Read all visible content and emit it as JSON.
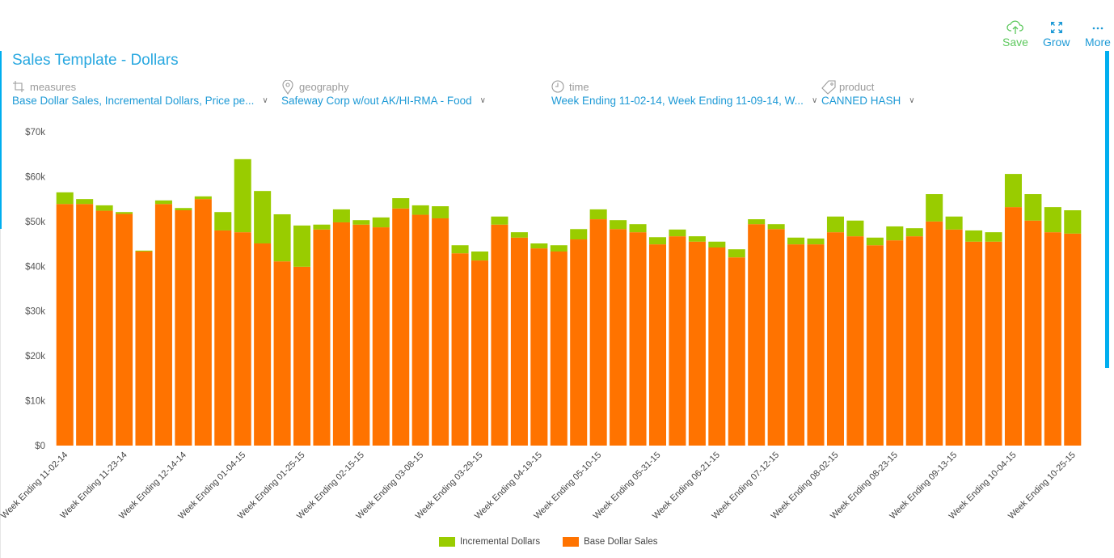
{
  "header": {
    "title": "Sales Template - Dollars",
    "actions": [
      {
        "label": "Save",
        "icon": "cloud-upload-icon",
        "color": "#5cc85c"
      },
      {
        "label": "Grow",
        "icon": "expand-icon",
        "color": "#1e9ad6"
      },
      {
        "label": "More",
        "icon": "more-dots-icon",
        "color": "#1e9ad6"
      }
    ]
  },
  "filters": {
    "measures": {
      "label": "measures",
      "value": "Base Dollar Sales, Incremental Dollars, Price pe...",
      "icon": "crop-icon"
    },
    "geography": {
      "label": "geography",
      "value": "Safeway Corp w/out AK/HI-RMA - Food",
      "icon": "map-pin-icon"
    },
    "time": {
      "label": "time",
      "value": "Week Ending 11-02-14, Week Ending 11-09-14, W...",
      "icon": "clock-icon"
    },
    "product": {
      "label": "product",
      "value": "CANNED HASH",
      "icon": "tag-icon"
    }
  },
  "colors": {
    "accent": "#00aeef",
    "incremental": "#99cc00",
    "base": "#ff7300"
  },
  "chart_data": {
    "type": "bar",
    "stacked": true,
    "title": "",
    "xlabel": "",
    "ylabel": "",
    "ylim": [
      0,
      70000
    ],
    "yticks": [
      0,
      10000,
      20000,
      30000,
      40000,
      50000,
      60000,
      70000
    ],
    "ytick_labels": [
      "$0",
      "$10k",
      "$20k",
      "$30k",
      "$40k",
      "$50k",
      "$60k",
      "$70k"
    ],
    "grid": false,
    "legend_position": "bottom-center",
    "x_labels_shown": [
      "Week Ending 11-02-14",
      "Week Ending 11-23-14",
      "Week Ending 12-14-14",
      "Week Ending 01-04-15",
      "Week Ending 01-25-15",
      "Week Ending 02-15-15",
      "Week Ending 03-08-15",
      "Week Ending 03-29-15",
      "Week Ending 04-19-15",
      "Week Ending 05-10-15",
      "Week Ending 05-31-15",
      "Week Ending 06-21-15",
      "Week Ending 07-12-15",
      "Week Ending 08-02-15",
      "Week Ending 08-23-15",
      "Week Ending 09-13-15",
      "Week Ending 10-04-15",
      "Week Ending 10-25-15"
    ],
    "x_label_every": 3,
    "series": [
      {
        "name": "Base Dollar Sales",
        "color": "#ff7300",
        "values": [
          53900,
          53900,
          52400,
          51700,
          43300,
          53900,
          52500,
          55000,
          48000,
          47600,
          45100,
          41100,
          39900,
          48200,
          49800,
          49300,
          48700,
          52900,
          51500,
          50700,
          42900,
          41300,
          49300,
          46400,
          44000,
          43300,
          46000,
          50500,
          48300,
          47600,
          44900,
          46700,
          45500,
          44200,
          42000,
          49400,
          48300,
          44900,
          44900,
          47600,
          46700,
          44700,
          45800,
          46700,
          50000,
          48200,
          45500,
          45500,
          53200,
          50200,
          47600,
          47300
        ]
      },
      {
        "name": "Incremental Dollars",
        "color": "#99cc00",
        "values": [
          2600,
          1100,
          1200,
          400,
          200,
          800,
          500,
          600,
          4100,
          16300,
          11700,
          10500,
          9200,
          1100,
          2900,
          1000,
          2200,
          2300,
          2100,
          2700,
          1800,
          2000,
          1800,
          1200,
          1100,
          1400,
          2300,
          2200,
          2000,
          1800,
          1600,
          1500,
          1200,
          1300,
          1800,
          1100,
          1100,
          1500,
          1300,
          3500,
          3500,
          1700,
          3100,
          1800,
          6100,
          2900,
          2500,
          2100,
          7400,
          5900,
          5600,
          5200
        ]
      }
    ],
    "legend": [
      "Incremental Dollars",
      "Base Dollar Sales"
    ]
  }
}
